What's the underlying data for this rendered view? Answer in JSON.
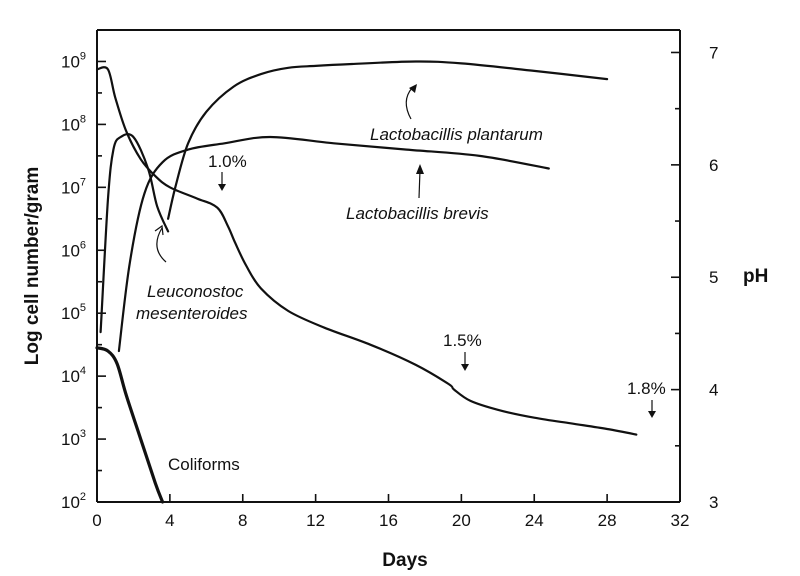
{
  "chart_data": {
    "type": "line",
    "xlabel": "Days",
    "ylabel_left": "Log cell number/gram",
    "ylabel_right": "pH",
    "xlim": [
      0,
      32
    ],
    "ylim_left_log10": [
      2,
      9.5
    ],
    "ylim_right": [
      3,
      7.2
    ],
    "x_ticks": [
      "0",
      "4",
      "8",
      "12",
      "16",
      "20",
      "24",
      "28",
      "32"
    ],
    "y_left_ticks": [
      {
        "base": "10",
        "exp": "2"
      },
      {
        "base": "10",
        "exp": "3"
      },
      {
        "base": "10",
        "exp": "4"
      },
      {
        "base": "10",
        "exp": "5"
      },
      {
        "base": "10",
        "exp": "6"
      },
      {
        "base": "10",
        "exp": "7"
      },
      {
        "base": "10",
        "exp": "8"
      },
      {
        "base": "10",
        "exp": "9"
      }
    ],
    "y_right_ticks": [
      "3",
      "4",
      "5",
      "6",
      "7"
    ],
    "series": [
      {
        "name": "Leuconostoc mesenteroides",
        "axis": "left",
        "x": [
          0.2,
          0.6,
          0.9,
          1.3,
          2.0,
          2.8,
          3.3,
          3.9
        ],
        "y": [
          4.7,
          6.8,
          7.6,
          7.8,
          7.8,
          7.3,
          6.7,
          6.3
        ]
      },
      {
        "name": "Lactobacillis brevis",
        "axis": "left",
        "x": [
          1.2,
          1.8,
          2.6,
          3.6,
          5.0,
          7.0,
          9.5,
          13,
          17,
          21,
          24.8
        ],
        "y": [
          4.4,
          5.8,
          6.9,
          7.4,
          7.6,
          7.7,
          7.8,
          7.7,
          7.6,
          7.5,
          7.3
        ]
      },
      {
        "name": "Lactobacillis plantarum",
        "axis": "left",
        "x": [
          3.9,
          4.3,
          5.0,
          6.0,
          7.5,
          9.0,
          10.5,
          12,
          14,
          17.5,
          20,
          24,
          28
        ],
        "y": [
          6.5,
          7.0,
          7.7,
          8.2,
          8.6,
          8.8,
          8.9,
          8.93,
          8.96,
          9.0,
          8.97,
          8.85,
          8.72
        ]
      },
      {
        "name": "Coliforms",
        "axis": "left",
        "x": [
          0,
          0.6,
          1.1,
          1.6,
          2.4,
          3.2,
          3.6
        ],
        "y": [
          4.45,
          4.4,
          4.2,
          3.7,
          3.0,
          2.3,
          2.0
        ]
      },
      {
        "name": "pH",
        "axis": "right",
        "x": [
          0,
          0.6,
          1.0,
          1.6,
          2.4,
          3.2,
          4.0,
          5.5,
          6.6,
          7.2,
          7.6,
          8.2,
          9.0,
          10.5,
          12.5,
          15,
          17.5,
          19.3,
          19.6,
          20.5,
          22,
          24,
          26,
          28,
          29.6
        ],
        "y": [
          6.85,
          6.85,
          6.6,
          6.3,
          6.05,
          5.9,
          5.8,
          5.7,
          5.62,
          5.45,
          5.3,
          5.1,
          4.9,
          4.7,
          4.55,
          4.4,
          4.22,
          4.05,
          4.0,
          3.9,
          3.82,
          3.75,
          3.7,
          3.65,
          3.6
        ]
      }
    ],
    "annotations": {
      "leuconostoc_line1": "Leuconostoc",
      "leuconostoc_line2": "mesenteroides",
      "brevis": "Lactobacillis brevis",
      "plantarum": "Lactobacillis plantarum",
      "coliforms": "Coliforms",
      "acid_1": "1.0%",
      "acid_2": "1.5%",
      "acid_3": "1.8%"
    }
  }
}
